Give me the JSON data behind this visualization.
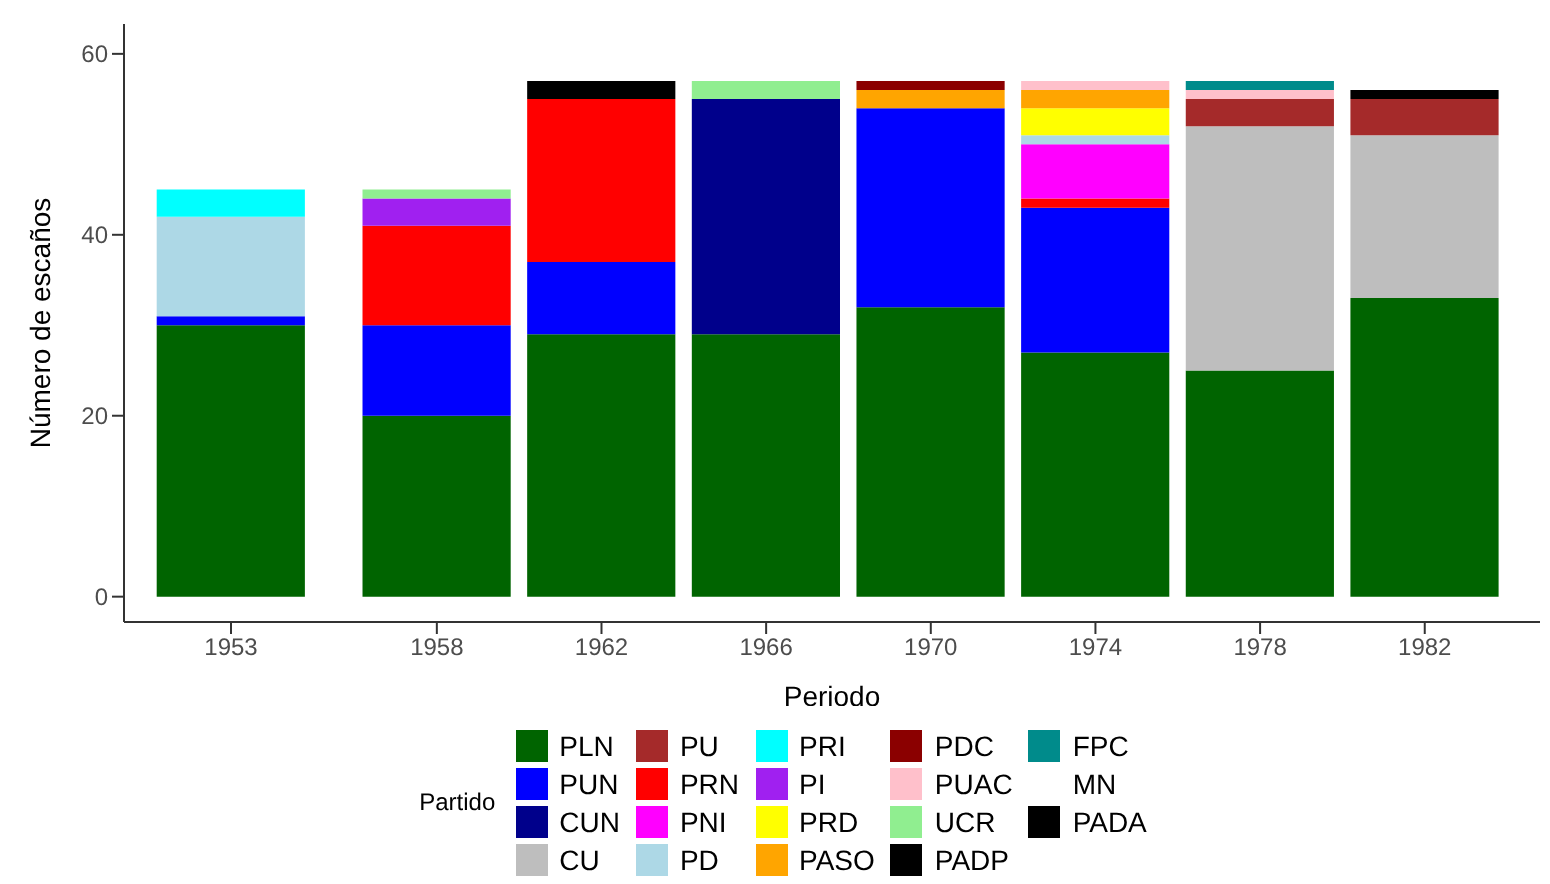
{
  "chart_data": {
    "type": "bar",
    "stacked": true,
    "xlabel": "Periodo",
    "ylabel": "Número de escaños",
    "legend_title": "Partido",
    "legend": "bottom",
    "x": [
      1953,
      1958,
      1962,
      1966,
      1970,
      1974,
      1978,
      1982
    ],
    "xlim": [
      1950.4,
      1984.8
    ],
    "xticks": [
      1953,
      1958,
      1962,
      1966,
      1970,
      1974,
      1978,
      1982
    ],
    "ylim": [
      -2.8,
      63.3
    ],
    "yticks": [
      0,
      20,
      40,
      60
    ],
    "series": [
      {
        "name": "PLN",
        "color": "#006400",
        "values": [
          30,
          20,
          29,
          29,
          32,
          27,
          25,
          33
        ]
      },
      {
        "name": "PUN",
        "color": "#0000ff",
        "values": [
          1,
          10,
          8,
          null,
          22,
          16,
          null,
          null
        ]
      },
      {
        "name": "CUN",
        "color": "#00008b",
        "values": [
          null,
          null,
          null,
          26,
          null,
          null,
          null,
          null
        ]
      },
      {
        "name": "CU",
        "color": "#bebebe",
        "values": [
          null,
          null,
          null,
          null,
          null,
          null,
          27,
          18
        ]
      },
      {
        "name": "PU",
        "color": "#a52a2a",
        "values": [
          null,
          null,
          null,
          null,
          null,
          null,
          3,
          4
        ]
      },
      {
        "name": "PRN",
        "color": "#ff0000",
        "values": [
          null,
          11,
          18,
          null,
          null,
          1,
          null,
          null
        ]
      },
      {
        "name": "PNI",
        "color": "#ff00ff",
        "values": [
          null,
          null,
          null,
          null,
          null,
          6,
          null,
          null
        ]
      },
      {
        "name": "PD",
        "color": "#add8e6",
        "values": [
          11,
          null,
          null,
          null,
          null,
          1,
          null,
          null
        ]
      },
      {
        "name": "PRI",
        "color": "#00ffff",
        "values": [
          3,
          null,
          null,
          null,
          null,
          null,
          null,
          null
        ]
      },
      {
        "name": "PI",
        "color": "#a020f0",
        "values": [
          null,
          3,
          null,
          null,
          null,
          null,
          null,
          null
        ]
      },
      {
        "name": "PRD",
        "color": "#ffff00",
        "values": [
          null,
          null,
          null,
          null,
          null,
          3,
          null,
          null
        ]
      },
      {
        "name": "PASO",
        "color": "#ffa500",
        "values": [
          null,
          null,
          null,
          null,
          2,
          2,
          null,
          null
        ]
      },
      {
        "name": "PDC",
        "color": "#8b0000",
        "values": [
          null,
          null,
          null,
          null,
          1,
          null,
          null,
          null
        ]
      },
      {
        "name": "PUAC",
        "color": "#ffc0cb",
        "values": [
          null,
          null,
          null,
          null,
          null,
          1,
          1,
          null
        ]
      },
      {
        "name": "UCR",
        "color": "#90ee90",
        "values": [
          null,
          1,
          null,
          2,
          null,
          null,
          null,
          null
        ]
      },
      {
        "name": "PADP",
        "color": "#000000",
        "values": [
          null,
          null,
          2,
          null,
          null,
          null,
          null,
          null
        ]
      },
      {
        "name": "FPC",
        "color": "#008b8b",
        "values": [
          null,
          null,
          null,
          null,
          null,
          null,
          1,
          null
        ]
      },
      {
        "name": "MN",
        "values": [
          null,
          null,
          null,
          null,
          null,
          null,
          null,
          null
        ]
      },
      {
        "name": "PADA",
        "color": "#000000",
        "values": [
          null,
          null,
          null,
          null,
          null,
          null,
          null,
          1
        ]
      }
    ]
  }
}
